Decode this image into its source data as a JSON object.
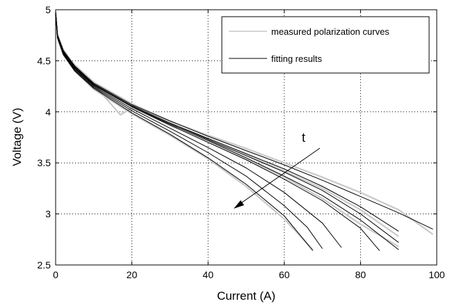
{
  "chart_data": {
    "type": "line",
    "title": "",
    "xlabel": "Current (A)",
    "ylabel": "Voltage (V)",
    "xlim": [
      0,
      100
    ],
    "ylim": [
      2.5,
      5
    ],
    "xticks": [
      0,
      20,
      40,
      60,
      80,
      100
    ],
    "yticks": [
      2.5,
      3,
      3.5,
      4,
      4.5,
      5
    ],
    "xtick_labels": [
      "0",
      "20",
      "40",
      "60",
      "80",
      "100"
    ],
    "ytick_labels": [
      "2.5",
      "3",
      "3.5",
      "4",
      "4.5",
      "5"
    ],
    "grid": true,
    "legend_position": "top-right",
    "legend": [
      "measured polarization curves",
      "fitting results"
    ],
    "colors": {
      "measured": "#c8c8c8",
      "fitting": "#000000"
    },
    "annotation": {
      "text": "t"
    },
    "series": [
      {
        "group": "fitting",
        "x": [
          0,
          0.5,
          2,
          5,
          10,
          20,
          30,
          40,
          50,
          60,
          70,
          80,
          90,
          99
        ],
        "y": [
          4.97,
          4.75,
          4.6,
          4.45,
          4.28,
          4.07,
          3.91,
          3.76,
          3.62,
          3.48,
          3.33,
          3.17,
          3.01,
          2.85
        ]
      },
      {
        "group": "fitting",
        "x": [
          0,
          0.5,
          2,
          5,
          10,
          20,
          30,
          40,
          50,
          60,
          70,
          80,
          90
        ],
        "y": [
          4.97,
          4.75,
          4.6,
          4.44,
          4.27,
          4.06,
          3.89,
          3.74,
          3.59,
          3.44,
          3.27,
          3.07,
          2.83
        ]
      },
      {
        "group": "fitting",
        "x": [
          0,
          0.5,
          2,
          5,
          10,
          20,
          30,
          40,
          50,
          60,
          70,
          80,
          90
        ],
        "y": [
          4.97,
          4.75,
          4.6,
          4.44,
          4.27,
          4.06,
          3.89,
          3.73,
          3.57,
          3.41,
          3.23,
          3.0,
          2.72
        ]
      },
      {
        "group": "fitting",
        "x": [
          0,
          0.5,
          2,
          5,
          10,
          20,
          30,
          40,
          50,
          60,
          70,
          80,
          90
        ],
        "y": [
          4.97,
          4.74,
          4.59,
          4.43,
          4.26,
          4.05,
          3.88,
          3.72,
          3.55,
          3.37,
          3.18,
          2.94,
          2.65
        ]
      },
      {
        "group": "fitting",
        "x": [
          0,
          0.5,
          2,
          5,
          10,
          20,
          30,
          40,
          50,
          60,
          70,
          80,
          85
        ],
        "y": [
          4.97,
          4.74,
          4.59,
          4.43,
          4.26,
          4.05,
          3.87,
          3.7,
          3.53,
          3.34,
          3.13,
          2.86,
          2.64
        ]
      },
      {
        "group": "fitting",
        "x": [
          0,
          0.5,
          2,
          5,
          10,
          20,
          30,
          40,
          50,
          60,
          70,
          75
        ],
        "y": [
          4.97,
          4.74,
          4.58,
          4.42,
          4.25,
          4.03,
          3.84,
          3.65,
          3.45,
          3.21,
          2.91,
          2.67
        ]
      },
      {
        "group": "fitting",
        "x": [
          0,
          0.5,
          2,
          5,
          10,
          20,
          30,
          40,
          50,
          60,
          66,
          70
        ],
        "y": [
          4.97,
          4.73,
          4.57,
          4.41,
          4.24,
          4.01,
          3.81,
          3.6,
          3.37,
          3.08,
          2.87,
          2.66
        ]
      },
      {
        "group": "fitting",
        "x": [
          0,
          0.5,
          2,
          5,
          10,
          20,
          30,
          40,
          50,
          60,
          67.5
        ],
        "y": [
          4.97,
          4.72,
          4.56,
          4.4,
          4.23,
          3.99,
          3.78,
          3.55,
          3.29,
          2.98,
          2.64
        ]
      },
      {
        "group": "measured",
        "x": [
          0,
          0.5,
          2,
          5,
          10,
          20,
          30,
          40,
          50,
          60,
          70,
          80,
          90,
          99
        ],
        "y": [
          4.98,
          4.76,
          4.6,
          4.46,
          4.29,
          4.08,
          3.91,
          3.77,
          3.64,
          3.5,
          3.36,
          3.21,
          3.04,
          2.8
        ]
      },
      {
        "group": "measured",
        "x": [
          0,
          0.5,
          2,
          5,
          10,
          17,
          20,
          30,
          40,
          50,
          60,
          70,
          80,
          90
        ],
        "y": [
          4.98,
          4.76,
          4.61,
          4.45,
          4.27,
          3.97,
          4.04,
          3.87,
          3.72,
          3.58,
          3.42,
          3.25,
          3.04,
          2.78
        ]
      },
      {
        "group": "measured",
        "x": [
          0,
          0.5,
          2,
          5,
          10,
          20,
          30,
          40,
          50,
          60,
          70,
          80,
          90
        ],
        "y": [
          4.98,
          4.75,
          4.6,
          4.44,
          4.27,
          4.05,
          3.88,
          3.71,
          3.54,
          3.36,
          3.15,
          2.9,
          2.68
        ]
      },
      {
        "group": "measured",
        "x": [
          0,
          0.5,
          2,
          5,
          10,
          20,
          30,
          40,
          50,
          60,
          67.5
        ],
        "y": [
          4.98,
          4.73,
          4.56,
          4.4,
          4.22,
          3.98,
          3.77,
          3.54,
          3.27,
          2.95,
          2.65
        ]
      }
    ]
  }
}
